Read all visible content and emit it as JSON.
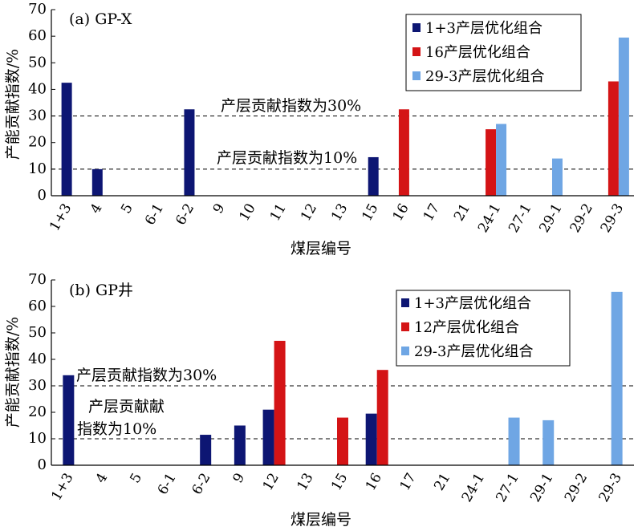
{
  "chart_data": [
    {
      "type": "bar",
      "title": "(a) GP-X",
      "xlabel": "煤层编号",
      "ylabel": "产能贡献指数/%",
      "ylim": [
        0,
        70
      ],
      "yticks": [
        0,
        10,
        20,
        30,
        40,
        50,
        60,
        70
      ],
      "categories": [
        "1+3",
        "4",
        "5",
        "6-1",
        "6-2",
        "9",
        "10",
        "11",
        "12",
        "13",
        "15",
        "16",
        "17",
        "21",
        "24-1",
        "27-1",
        "29-1",
        "29-2",
        "29-3"
      ],
      "series": [
        {
          "name": "1+3产层优化组合",
          "color": "#0d1673",
          "values": [
            42.5,
            10,
            null,
            null,
            32.5,
            null,
            null,
            null,
            null,
            null,
            14.5,
            null,
            null,
            null,
            null,
            null,
            null,
            null,
            null
          ]
        },
        {
          "name": "16产层优化组合",
          "color": "#d41416",
          "values": [
            null,
            null,
            null,
            null,
            null,
            null,
            null,
            null,
            null,
            null,
            null,
            32.5,
            null,
            null,
            25,
            null,
            null,
            null,
            43
          ]
        },
        {
          "name": "29-3产层优化组合",
          "color": "#6fa6e4",
          "values": [
            null,
            null,
            null,
            null,
            null,
            null,
            null,
            null,
            null,
            null,
            null,
            null,
            null,
            null,
            27,
            null,
            14,
            null,
            59.5
          ]
        }
      ],
      "reference_lines": [
        {
          "value": 30,
          "label": "产层贡献指数为30%"
        },
        {
          "value": 10,
          "label": "产层贡献指数为10%"
        }
      ],
      "legend": "top-right",
      "grid": false
    },
    {
      "type": "bar",
      "title": "(b) GP井",
      "xlabel": "煤层编号",
      "ylabel": "产能贡献指数/%",
      "ylim": [
        0,
        70
      ],
      "yticks": [
        0,
        10,
        20,
        30,
        40,
        50,
        60,
        70
      ],
      "categories": [
        "1+3",
        "4",
        "5",
        "6-1",
        "6-2",
        "9",
        "12",
        "13",
        "15",
        "16",
        "17",
        "21",
        "24-1",
        "27-1",
        "29-1",
        "29-2",
        "29-3"
      ],
      "series": [
        {
          "name": "1+3产层优化组合",
          "color": "#0d1673",
          "values": [
            34,
            null,
            null,
            null,
            11.5,
            15,
            21,
            null,
            null,
            19.5,
            null,
            null,
            null,
            null,
            null,
            null,
            null
          ]
        },
        {
          "name": "12产层优化组合",
          "color": "#d41416",
          "values": [
            null,
            null,
            null,
            null,
            null,
            null,
            47,
            null,
            18,
            36,
            null,
            null,
            null,
            null,
            null,
            null,
            null
          ]
        },
        {
          "name": "29-3产层优化组合",
          "color": "#6fa6e4",
          "values": [
            null,
            null,
            null,
            null,
            null,
            null,
            null,
            null,
            null,
            null,
            null,
            null,
            null,
            18,
            17,
            null,
            65.5
          ]
        }
      ],
      "reference_lines": [
        {
          "value": 30,
          "label": "产层贡献指数为30%"
        },
        {
          "value": 10,
          "label_lines": [
            "产层贡献献",
            "指数为10%"
          ]
        }
      ],
      "legend": "top-right",
      "grid": false
    }
  ]
}
